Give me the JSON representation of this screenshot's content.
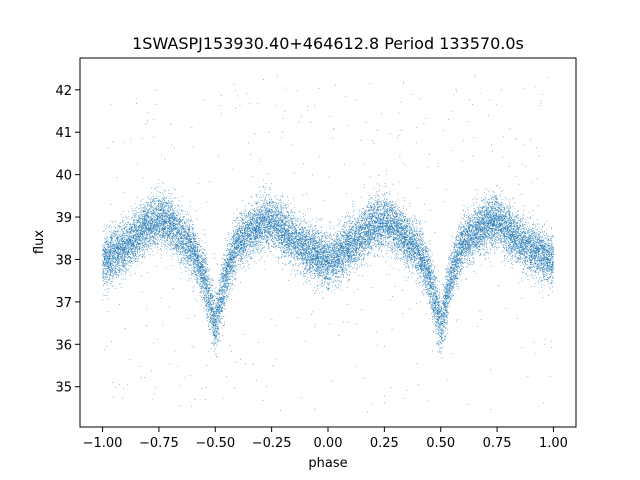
{
  "chart_data": {
    "type": "scatter",
    "title": "1SWASPJ153930.40+464612.8 Period 133570.0s",
    "xlabel": "phase",
    "ylabel": "flux",
    "xlim": [
      -1.1,
      1.1
    ],
    "ylim": [
      34.05,
      42.75
    ],
    "xticks": [
      -1.0,
      -0.75,
      -0.5,
      -0.25,
      0.0,
      0.25,
      0.5,
      0.75,
      1.0
    ],
    "xtick_labels": [
      "−1.00",
      "−0.75",
      "−0.50",
      "−0.25",
      "0.00",
      "0.25",
      "0.50",
      "0.75",
      "1.00"
    ],
    "yticks": [
      35,
      36,
      37,
      38,
      39,
      40,
      41,
      42
    ],
    "ytick_labels": [
      "35",
      "36",
      "37",
      "38",
      "39",
      "40",
      "41",
      "42"
    ],
    "grid": false,
    "marker_color": "#1f77b4",
    "profile": {
      "description": "folded light curve mean flux vs phase (period 2 repeats)",
      "phase": [
        -1.0,
        -0.9,
        -0.8,
        -0.75,
        -0.7,
        -0.6,
        -0.55,
        -0.52,
        -0.5,
        -0.48,
        -0.45,
        -0.4,
        -0.3,
        -0.25,
        -0.2,
        -0.1,
        0.0,
        0.1,
        0.2,
        0.25,
        0.3,
        0.4,
        0.45,
        0.48,
        0.5,
        0.52,
        0.55,
        0.6,
        0.7,
        0.75,
        0.8,
        0.9,
        1.0
      ],
      "flux": [
        37.95,
        38.3,
        38.8,
        38.95,
        38.85,
        38.25,
        37.6,
        36.9,
        36.45,
        36.9,
        37.7,
        38.4,
        38.85,
        38.9,
        38.7,
        38.25,
        37.95,
        38.3,
        38.8,
        38.9,
        38.75,
        38.2,
        37.6,
        36.9,
        36.45,
        36.9,
        37.7,
        38.4,
        38.85,
        38.9,
        38.7,
        38.25,
        37.95
      ]
    },
    "n_points": 22000,
    "scatter_sigma": 0.3,
    "outlier_fraction": 0.02
  }
}
